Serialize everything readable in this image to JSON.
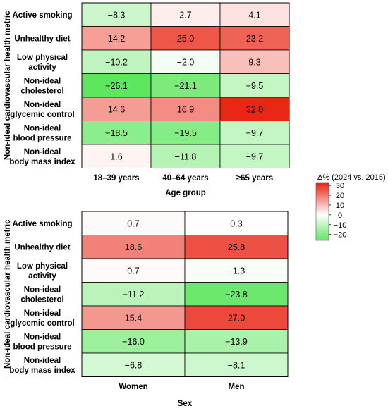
{
  "chart_data": [
    {
      "type": "heatmap",
      "ylabel": "Non-ideal cardiovascular health metric",
      "xlabel": "Age group",
      "rows": [
        "Active smoking",
        "Unhealthy diet",
        "Low physical activity",
        "Non-ideal cholesterol",
        "Non-ideal glycemic control",
        "Non-ideal blood pressure",
        "Non-ideal body mass index"
      ],
      "row_lines": [
        [
          "Active smoking"
        ],
        [
          "Unhealthy diet"
        ],
        [
          "Low physical",
          "activity"
        ],
        [
          "Non-ideal",
          "cholesterol"
        ],
        [
          "Non-ideal",
          "glycemic control"
        ],
        [
          "Non-ideal",
          "blood pressure"
        ],
        [
          "Non-ideal",
          "body mass index"
        ]
      ],
      "columns": [
        "18–39 years",
        "40–64 years",
        "≥65 years"
      ],
      "values": [
        [
          -8.3,
          2.7,
          4.1
        ],
        [
          14.2,
          25.0,
          23.2
        ],
        [
          -10.2,
          -2.0,
          9.3
        ],
        [
          -26.1,
          -21.1,
          -9.5
        ],
        [
          14.6,
          16.9,
          32.0
        ],
        [
          -18.5,
          -19.5,
          -9.7
        ],
        [
          1.6,
          -11.8,
          -9.7
        ]
      ],
      "labels": [
        [
          "−8.3",
          "2.7",
          "4.1"
        ],
        [
          "14.2",
          "25.0",
          "23.2"
        ],
        [
          "−10.2",
          "−2.0",
          "9.3"
        ],
        [
          "−26.1",
          "−21.1",
          "−9.5"
        ],
        [
          "14.6",
          "16.9",
          "32.0"
        ],
        [
          "−18.5",
          "−19.5",
          "−9.7"
        ],
        [
          "1.6",
          "−11.8",
          "−9.7"
        ]
      ]
    },
    {
      "type": "heatmap",
      "ylabel": "Non-ideal cardiovascular health metric",
      "xlabel": "Sex",
      "rows": [
        "Active smoking",
        "Unhealthy diet",
        "Low physical activity",
        "Non-ideal cholesterol",
        "Non-ideal glycemic control",
        "Non-ideal blood pressure",
        "Non-ideal body mass index"
      ],
      "row_lines": [
        [
          "Active smoking"
        ],
        [
          "Unhealthy diet"
        ],
        [
          "Low physical",
          "activity"
        ],
        [
          "Non-ideal",
          "cholesterol"
        ],
        [
          "Non-ideal",
          "glycemic control"
        ],
        [
          "Non-ideal",
          "blood pressure"
        ],
        [
          "Non-ideal",
          "body mass index"
        ]
      ],
      "columns": [
        "Women",
        "Men"
      ],
      "values": [
        [
          0.7,
          0.3
        ],
        [
          18.6,
          25.8
        ],
        [
          0.7,
          -1.3
        ],
        [
          -11.2,
          -23.8
        ],
        [
          15.4,
          27.0
        ],
        [
          -16.0,
          -13.9
        ],
        [
          -6.8,
          -8.1
        ]
      ],
      "labels": [
        [
          "0.7",
          "0.3"
        ],
        [
          "18.6",
          "25.8"
        ],
        [
          "0.7",
          "−1.3"
        ],
        [
          "−11.2",
          "−23.8"
        ],
        [
          "15.4",
          "27.0"
        ],
        [
          "−16.0",
          "−13.9"
        ],
        [
          "−6.8",
          "−8.1"
        ]
      ]
    }
  ],
  "legend": {
    "title": "Δ% (2024 vs. 2015)",
    "ticks": [
      30,
      20,
      10,
      0,
      -10,
      -20
    ],
    "tick_labels": [
      "30",
      "20",
      "10",
      "0",
      "−10",
      "−20"
    ],
    "range": [
      -26,
      33
    ],
    "colors": {
      "negative": "#5ee65e",
      "zero": "#ffffff",
      "positive": "#e8200e"
    }
  }
}
